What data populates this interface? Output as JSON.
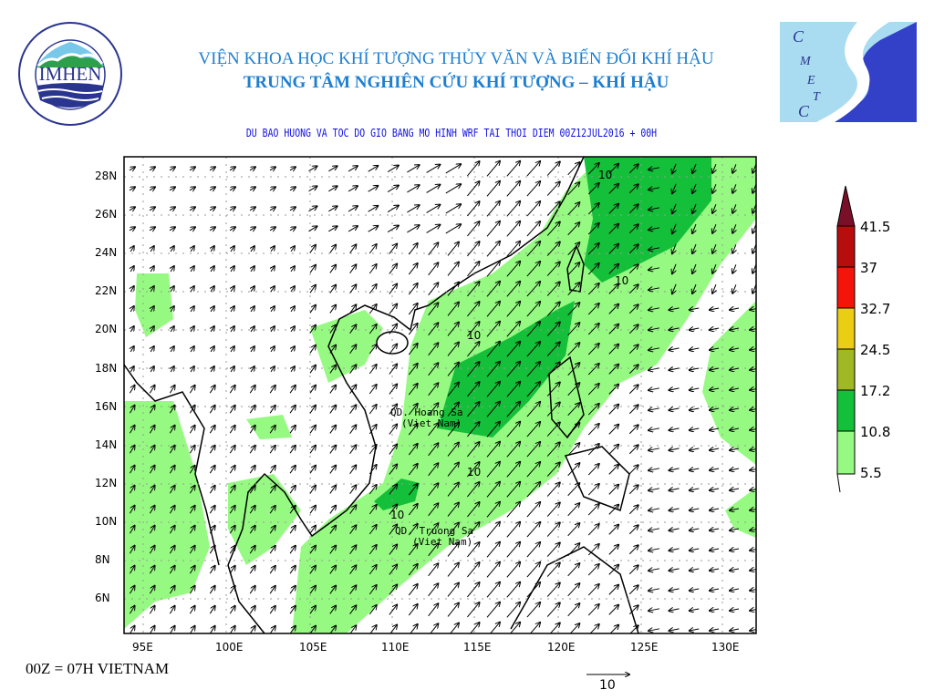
{
  "header": {
    "institute_title": "VIỆN KHOA HỌC KHÍ TƯỢNG THỦY VĂN VÀ BIẾN ĐỔI KHÍ HẬU",
    "center_title": "TRUNG TÂM NGHIÊN CỨU KHÍ TƯỢNG – KHÍ HẬU",
    "map_title": "DU BAO HUONG VA TOC DO GIO BANG MO HINH WRF TAI THOI DIEM  00Z12JUL2016 + 00H",
    "left_logo": {
      "text": "IMHEN",
      "ring_text": "VIỆN KHOA HỌC KHÍ TƯỢNG THỦY VĂN VÀ BIẾN ĐỔI KHÍ HẬU"
    },
    "right_logo": {
      "text": "CMETC"
    }
  },
  "map": {
    "lon_ticks": [
      "95E",
      "100E",
      "105E",
      "110E",
      "115E",
      "120E",
      "125E",
      "130E"
    ],
    "lat_ticks": [
      "28N",
      "26N",
      "24N",
      "22N",
      "20N",
      "18N",
      "16N",
      "14N",
      "12N",
      "10N",
      "8N",
      "6N"
    ],
    "annotations": [
      {
        "line1": "QD. Hoang Sa",
        "line2": "(Viet Nam)"
      },
      {
        "line1": "QD. Truong Sa",
        "line2": "(Viet Nam)"
      }
    ],
    "contour_labels": [
      "10",
      "10",
      "10",
      "10",
      "10"
    ]
  },
  "colorbar": {
    "levels": [
      "41.5",
      "37",
      "32.7",
      "24.5",
      "17.2",
      "10.8",
      "5.5"
    ],
    "colors": [
      "#7a1028",
      "#b80d0d",
      "#f5140a",
      "#ebcd14",
      "#a0b823",
      "#14c039",
      "#96fa82"
    ]
  },
  "footer": {
    "time_note": "00Z = 07H VIETNAM",
    "reference_vector_label": "10"
  }
}
